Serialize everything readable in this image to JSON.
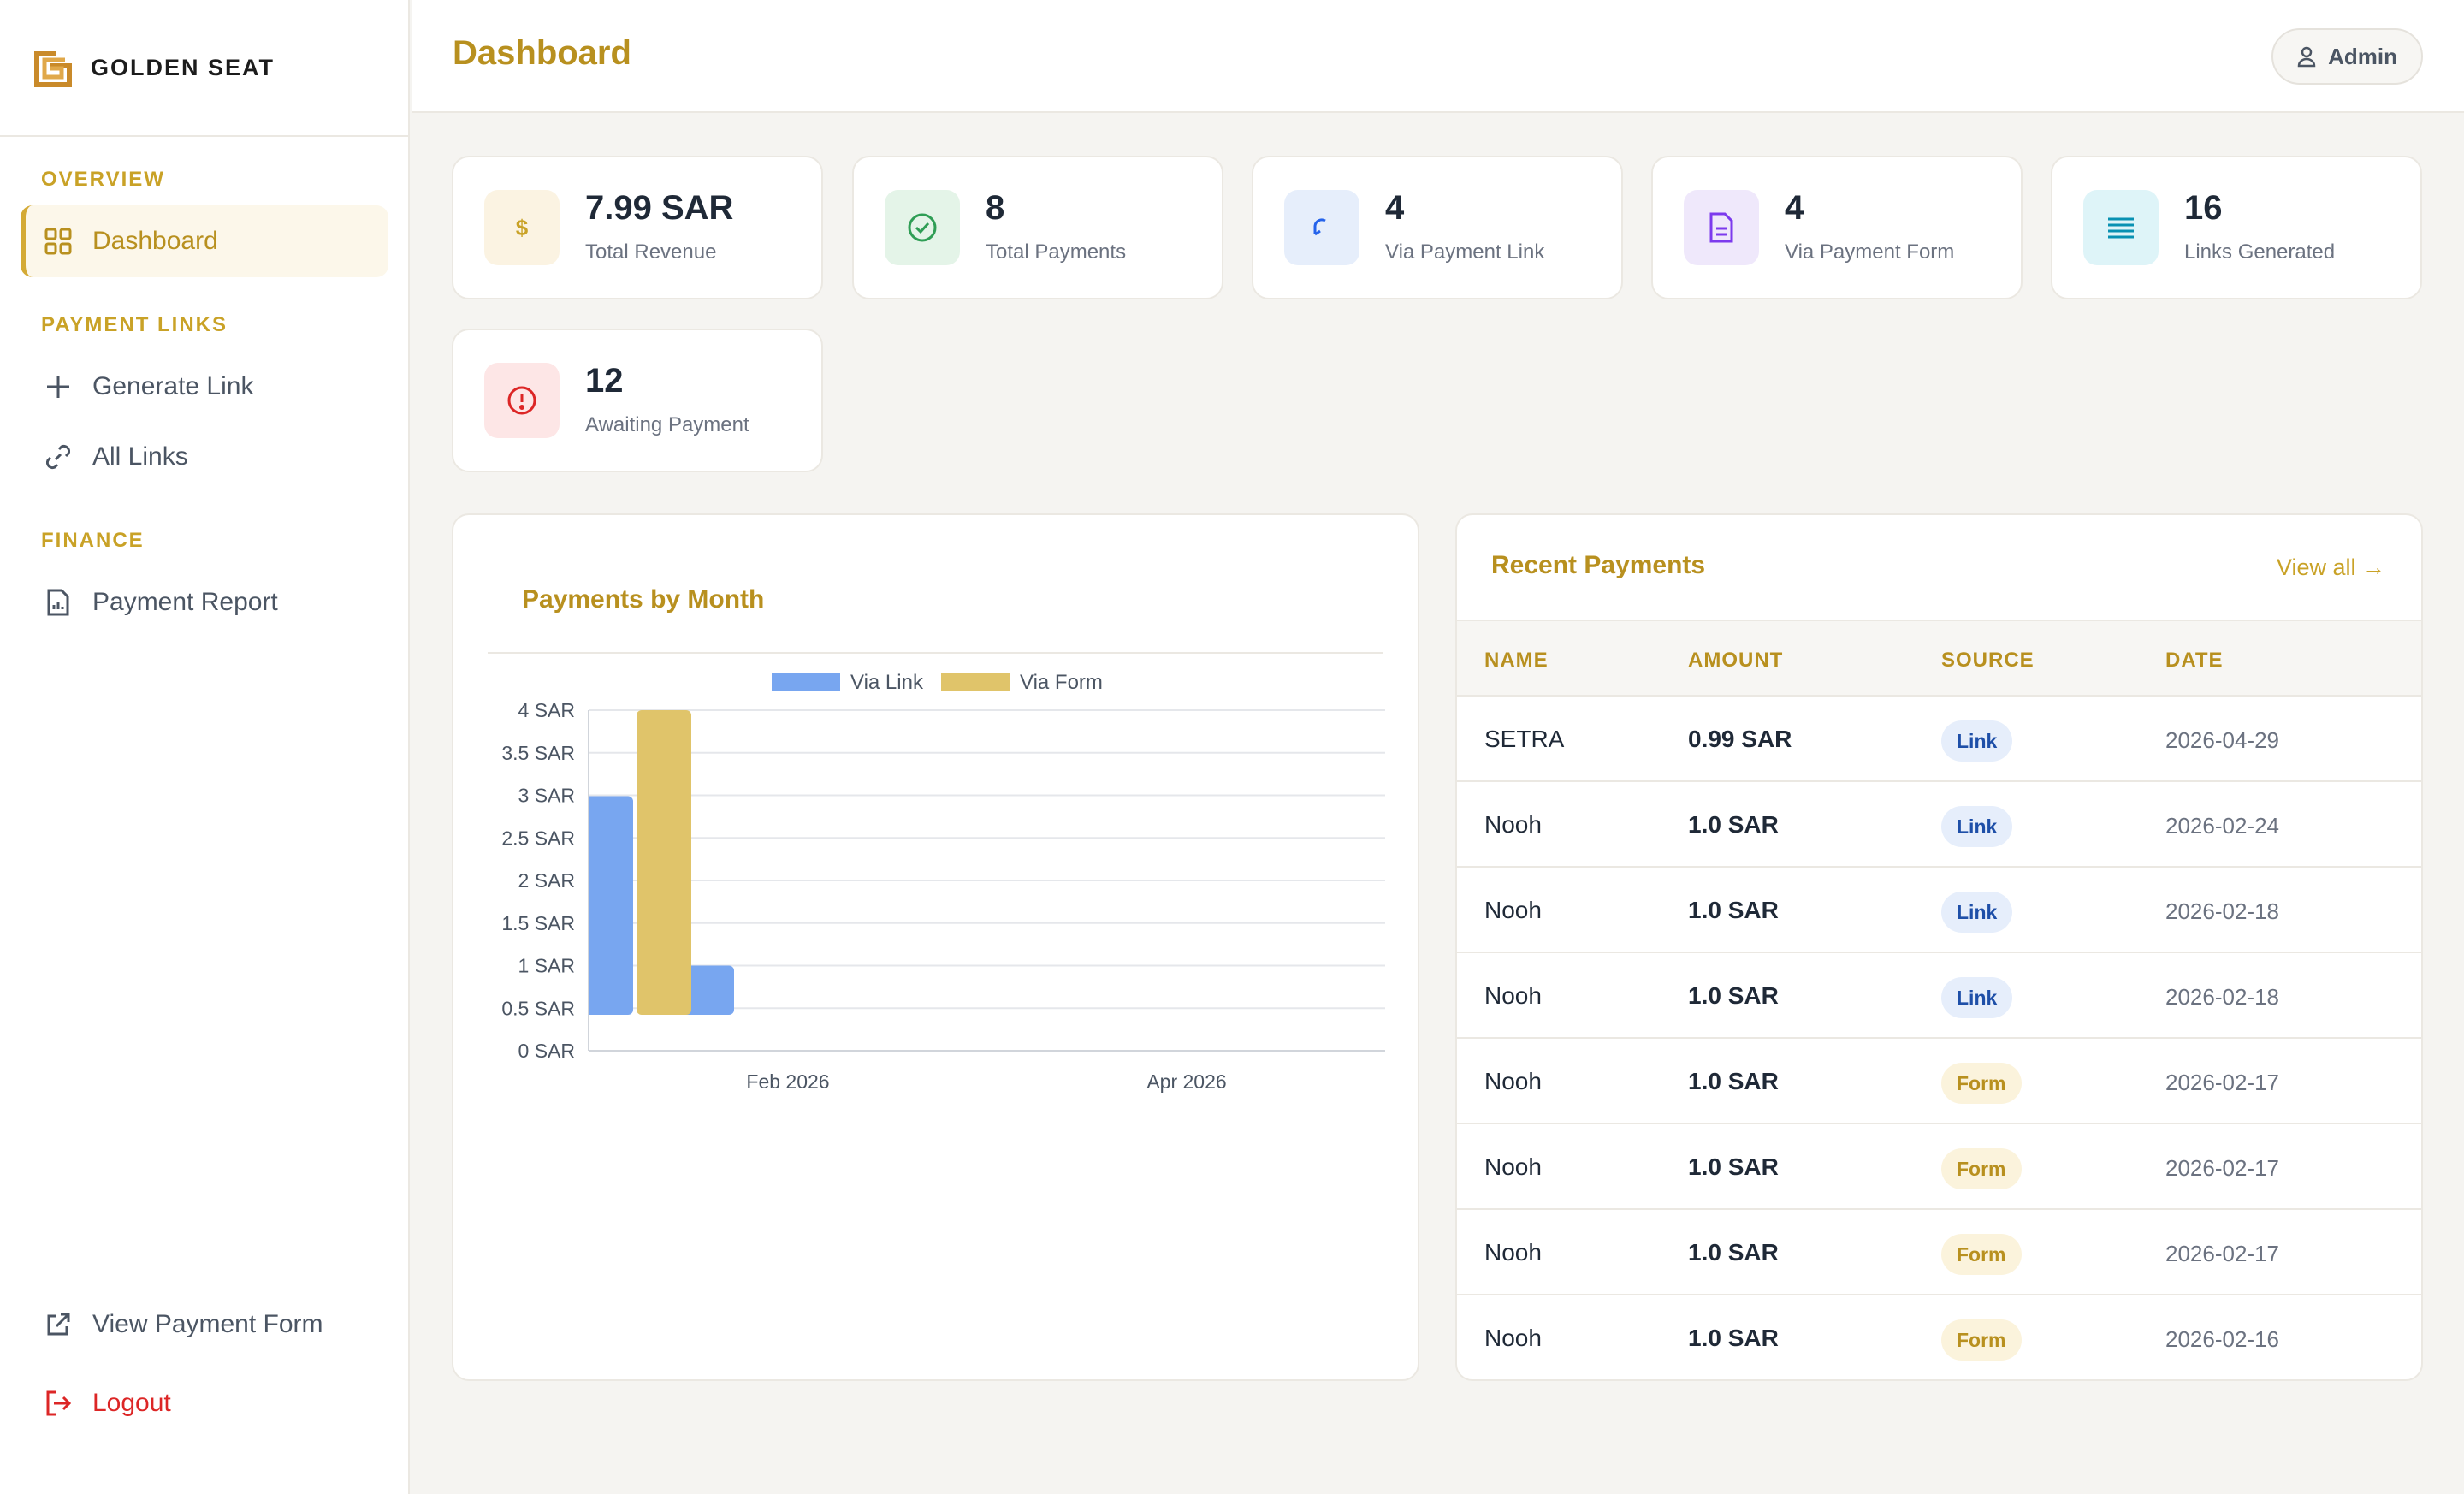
{
  "brand": {
    "name": "GOLDEN SEAT"
  },
  "sidebar": {
    "sections": [
      {
        "title": "OVERVIEW",
        "items": [
          {
            "label": "Dashboard",
            "icon": "grid-icon",
            "active": true
          }
        ]
      },
      {
        "title": "PAYMENT LINKS",
        "items": [
          {
            "label": "Generate Link",
            "icon": "plus-icon"
          },
          {
            "label": "All Links",
            "icon": "link-icon"
          }
        ]
      },
      {
        "title": "FINANCE",
        "items": [
          {
            "label": "Payment Report",
            "icon": "report-icon"
          }
        ]
      }
    ],
    "bottom": {
      "view_form": "View Payment Form",
      "logout": "Logout"
    }
  },
  "header": {
    "title": "Dashboard",
    "user": "Admin"
  },
  "stats": [
    {
      "value": "7.99 SAR",
      "label": "Total Revenue",
      "icon": "dollar-icon"
    },
    {
      "value": "8",
      "label": "Total Payments",
      "icon": "check-circle-icon"
    },
    {
      "value": "4",
      "label": "Via Payment Link",
      "icon": "link-icon"
    },
    {
      "value": "4",
      "label": "Via Payment Form",
      "icon": "document-icon"
    },
    {
      "value": "16",
      "label": "Links Generated",
      "icon": "list-icon"
    },
    {
      "value": "12",
      "label": "Awaiting Payment",
      "icon": "alert-icon"
    }
  ],
  "colors": {
    "accent": "#b8901f",
    "via_link": "#78a6f0",
    "via_form": "#e0c46a"
  },
  "chart_data": {
    "type": "bar",
    "title": "Payments by Month",
    "legend": "top",
    "yticks": [
      "0 SAR",
      "0.5 SAR",
      "1 SAR",
      "1.5 SAR",
      "2 SAR",
      "2.5 SAR",
      "3 SAR",
      "3.5 SAR",
      "4 SAR"
    ],
    "ylim": [
      0,
      4
    ],
    "xticks": [
      "Feb 2026",
      "Apr 2026"
    ],
    "series": [
      {
        "name": "Via Link",
        "values": [
          2.99,
          1.0
        ]
      },
      {
        "name": "Via Form",
        "values": [
          4.0,
          0
        ]
      }
    ]
  },
  "recent": {
    "title": "Recent Payments",
    "view_all": "View all →",
    "headers": [
      "NAME",
      "AMOUNT",
      "SOURCE",
      "DATE"
    ],
    "rows": [
      {
        "name": "SETRA",
        "amount": "0.99 SAR",
        "source": "Link",
        "date": "2026-04-29"
      },
      {
        "name": "Nooh",
        "amount": "1.0 SAR",
        "source": "Link",
        "date": "2026-02-24"
      },
      {
        "name": "Nooh",
        "amount": "1.0 SAR",
        "source": "Link",
        "date": "2026-02-18"
      },
      {
        "name": "Nooh",
        "amount": "1.0 SAR",
        "source": "Link",
        "date": "2026-02-18"
      },
      {
        "name": "Nooh",
        "amount": "1.0 SAR",
        "source": "Form",
        "date": "2026-02-17"
      },
      {
        "name": "Nooh",
        "amount": "1.0 SAR",
        "source": "Form",
        "date": "2026-02-17"
      },
      {
        "name": "Nooh",
        "amount": "1.0 SAR",
        "source": "Form",
        "date": "2026-02-17"
      },
      {
        "name": "Nooh",
        "amount": "1.0 SAR",
        "source": "Form",
        "date": "2026-02-16"
      }
    ]
  }
}
